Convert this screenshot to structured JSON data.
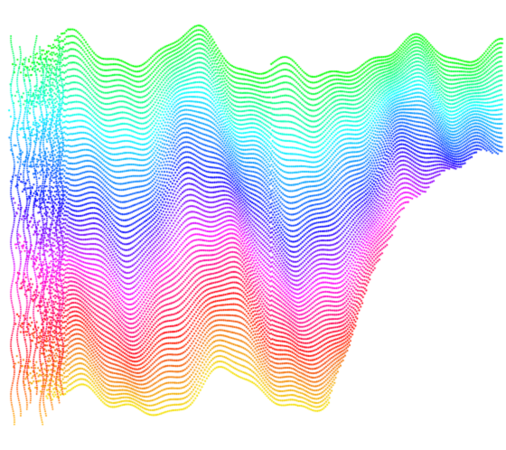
{
  "artwork": {
    "subject": "rainbow-dotted-wave-ribbons",
    "background_color": "#ffffff",
    "line_count": 70,
    "palette": {
      "top_edge": "#22dd33",
      "upper_middle": "#00e5ff",
      "middle": "#2233ff",
      "lower_middle": "#ff00cc",
      "lower": "#ff2200",
      "bottom_edge": "#ffee00"
    },
    "hue_stops": [
      {
        "t": 0.0,
        "hue": 120
      },
      {
        "t": 0.22,
        "hue": 185
      },
      {
        "t": 0.42,
        "hue": 235
      },
      {
        "t": 0.62,
        "hue": 305
      },
      {
        "t": 0.82,
        "hue": 5
      },
      {
        "t": 1.0,
        "hue": 55
      }
    ],
    "style": "dotted"
  }
}
